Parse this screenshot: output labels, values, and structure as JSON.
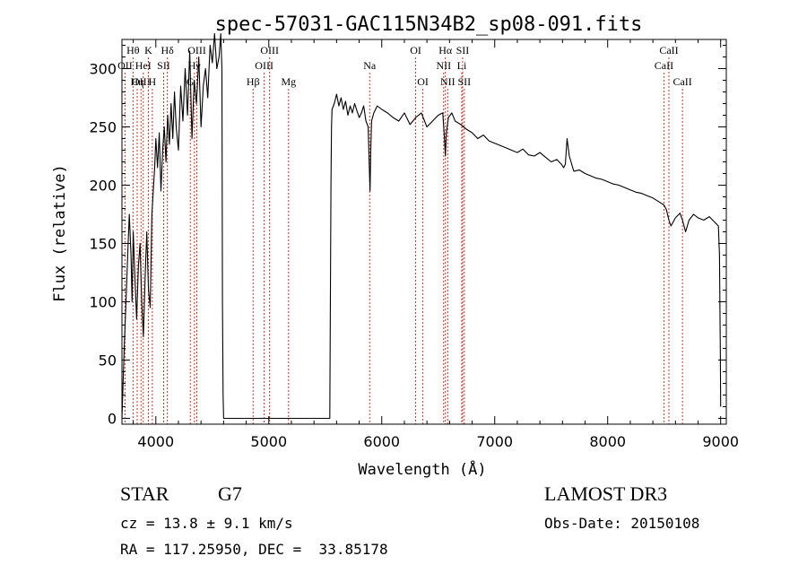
{
  "chart_data": {
    "type": "line",
    "title": "spec-57031-GAC115N34B2_sp08-091.fits",
    "xlabel": "Wavelength (Å)",
    "ylabel": "Flux (relative)",
    "xlim": [
      3700,
      9050
    ],
    "ylim": [
      -5,
      325
    ],
    "xticks": [
      4000,
      5000,
      6000,
      7000,
      8000,
      9000
    ],
    "xtick_labels": [
      "4000",
      "5000",
      "6000",
      "7000",
      "8000",
      "9000"
    ],
    "yticks": [
      0,
      50,
      100,
      150,
      200,
      250,
      300
    ],
    "ytick_labels": [
      "0",
      "50",
      "100",
      "150",
      "200",
      "250",
      "300"
    ],
    "series": [
      {
        "name": "flux",
        "color": "#000000",
        "x": [
          3700,
          3720,
          3740,
          3755,
          3765,
          3780,
          3790,
          3800,
          3815,
          3830,
          3845,
          3860,
          3875,
          3890,
          3905,
          3920,
          3935,
          3950,
          3965,
          3980,
          3990,
          4000,
          4015,
          4030,
          4045,
          4060,
          4075,
          4090,
          4105,
          4120,
          4135,
          4150,
          4165,
          4180,
          4200,
          4220,
          4240,
          4260,
          4280,
          4300,
          4320,
          4340,
          4360,
          4380,
          4400,
          4420,
          4440,
          4460,
          4480,
          4500,
          4520,
          4540,
          4560,
          4575,
          4585,
          4590,
          4595,
          4600,
          5540,
          5550,
          5555,
          5560,
          5580,
          5600,
          5620,
          5640,
          5660,
          5680,
          5700,
          5720,
          5740,
          5760,
          5780,
          5800,
          5820,
          5840,
          5860,
          5880,
          5890,
          5896,
          5903,
          5910,
          5930,
          5960,
          6000,
          6050,
          6100,
          6150,
          6200,
          6250,
          6300,
          6350,
          6400,
          6450,
          6500,
          6540,
          6555,
          6563,
          6572,
          6590,
          6620,
          6650,
          6700,
          6750,
          6800,
          6850,
          6900,
          6950,
          7000,
          7050,
          7100,
          7150,
          7200,
          7250,
          7300,
          7350,
          7400,
          7450,
          7500,
          7550,
          7590,
          7610,
          7625,
          7640,
          7660,
          7700,
          7750,
          7800,
          7850,
          7900,
          7950,
          8000,
          8050,
          8100,
          8150,
          8200,
          8250,
          8300,
          8350,
          8400,
          8450,
          8498,
          8520,
          8542,
          8560,
          8600,
          8640,
          8662,
          8690,
          8720,
          8760,
          8800,
          8850,
          8900,
          8950,
          8980,
          8990,
          8998,
          9000
        ],
        "y": [
          0,
          60,
          110,
          150,
          175,
          140,
          100,
          160,
          120,
          85,
          130,
          150,
          100,
          70,
          120,
          160,
          110,
          95,
          175,
          200,
          215,
          240,
          215,
          245,
          195,
          230,
          250,
          220,
          260,
          235,
          270,
          240,
          280,
          250,
          230,
          285,
          255,
          300,
          260,
          315,
          240,
          290,
          270,
          310,
          250,
          285,
          300,
          275,
          320,
          305,
          330,
          300,
          310,
          330,
          300,
          100,
          20,
          0,
          0,
          200,
          250,
          265,
          270,
          278,
          268,
          275,
          265,
          272,
          260,
          268,
          262,
          270,
          264,
          258,
          262,
          268,
          255,
          250,
          215,
          195,
          230,
          255,
          262,
          268,
          265,
          262,
          258,
          255,
          262,
          252,
          258,
          262,
          250,
          255,
          260,
          262,
          240,
          225,
          245,
          258,
          262,
          255,
          252,
          248,
          245,
          240,
          243,
          238,
          236,
          234,
          232,
          230,
          228,
          231,
          226,
          225,
          228,
          224,
          220,
          222,
          218,
          215,
          218,
          240,
          225,
          212,
          213,
          210,
          208,
          206,
          205,
          203,
          201,
          200,
          198,
          196,
          194,
          193,
          191,
          189,
          186,
          183,
          179,
          170,
          165,
          172,
          176,
          170,
          160,
          170,
          175,
          172,
          170,
          173,
          168,
          165,
          140,
          50,
          10
        ]
      }
    ],
    "line_markers": [
      {
        "label": "Hθ",
        "wl": 3798,
        "row": 0
      },
      {
        "label": "OII",
        "wl": 3727,
        "row": 1
      },
      {
        "label": "OIII",
        "wl": 3869,
        "row": 2
      },
      {
        "label": "K",
        "wl": 3934,
        "row": 0
      },
      {
        "label": "HeI",
        "wl": 3889,
        "row": 1
      },
      {
        "label": "Hη",
        "wl": 3835,
        "row": 2
      },
      {
        "label": "SII",
        "wl": 4069,
        "row": 1
      },
      {
        "label": "H",
        "wl": 3969,
        "row": 2
      },
      {
        "label": "Hδ",
        "wl": 4102,
        "row": 0
      },
      {
        "label": "OIII",
        "wl": 4363,
        "row": 0
      },
      {
        "label": "Hγ",
        "wl": 4341,
        "row": 1
      },
      {
        "label": "G",
        "wl": 4305,
        "row": 2
      },
      {
        "label": "OIII",
        "wl": 5007,
        "row": 0
      },
      {
        "label": "OIII",
        "wl": 4959,
        "row": 1
      },
      {
        "label": "Hβ",
        "wl": 4861,
        "row": 2
      },
      {
        "label": "Mg",
        "wl": 5175,
        "row": 2
      },
      {
        "label": "Na",
        "wl": 5893,
        "row": 1
      },
      {
        "label": "OI",
        "wl": 6300,
        "row": 0
      },
      {
        "label": "OI",
        "wl": 6364,
        "row": 2
      },
      {
        "label": "Hα",
        "wl": 6563,
        "row": 0
      },
      {
        "label": "SII",
        "wl": 6716,
        "row": 0
      },
      {
        "label": "NII",
        "wl": 6548,
        "row": 1
      },
      {
        "label": "Li",
        "wl": 6708,
        "row": 1
      },
      {
        "label": "NII",
        "wl": 6584,
        "row": 2
      },
      {
        "label": "SII",
        "wl": 6731,
        "row": 2
      },
      {
        "label": "CaII",
        "wl": 8542,
        "row": 0
      },
      {
        "label": "CaII",
        "wl": 8498,
        "row": 1
      },
      {
        "label": "CaII",
        "wl": 8662,
        "row": 2
      }
    ],
    "marker_color": "#c0392b",
    "grid": false,
    "legend": "none"
  },
  "info": {
    "object_class": "STAR",
    "subclass": "G7",
    "survey": "LAMOST DR3",
    "redshift": "cz = 13.8 ± 9.1 km/s",
    "obs_date": "Obs-Date: 20150108",
    "coords": "RA = 117.25950, DEC =  33.85178"
  }
}
